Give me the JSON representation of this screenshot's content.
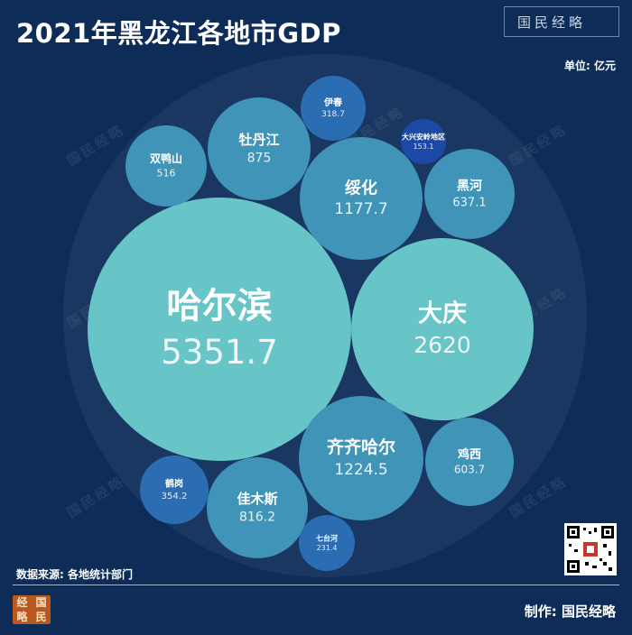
{
  "header": {
    "title": "2021年黑龙江各地市GDP",
    "brand": "国民经略",
    "unit": "单位: 亿元"
  },
  "footer": {
    "source": "数据来源: 各地统计部门",
    "maker": "制作: 国民经略",
    "logo_chars": [
      "经",
      "国",
      "略",
      "民"
    ]
  },
  "colors": {
    "background": "#0d2d58",
    "large_bubble": "#67c4c7",
    "mid_bubble": "#3f94b8",
    "small_bubble": "#2a6db3",
    "tiny_bubble": "#1d49a6"
  },
  "chart_data": {
    "type": "bubble",
    "title": "2021年黑龙江各地市GDP",
    "unit": "亿元",
    "items": [
      {
        "name": "哈尔滨",
        "value": 5351.7,
        "label": "5351.7"
      },
      {
        "name": "大庆",
        "value": 2620,
        "label": "2620"
      },
      {
        "name": "齐齐哈尔",
        "value": 1224.5,
        "label": "1224.5"
      },
      {
        "name": "绥化",
        "value": 1177.7,
        "label": "1177.7"
      },
      {
        "name": "牡丹江",
        "value": 875,
        "label": "875"
      },
      {
        "name": "佳木斯",
        "value": 816.2,
        "label": "816.2"
      },
      {
        "name": "黑河",
        "value": 637.1,
        "label": "637.1"
      },
      {
        "name": "鸡西",
        "value": 603.7,
        "label": "603.7"
      },
      {
        "name": "双鸭山",
        "value": 516,
        "label": "516"
      },
      {
        "name": "鹤岗",
        "value": 354.2,
        "label": "354.2"
      },
      {
        "name": "伊春",
        "value": 318.7,
        "label": "318.7"
      },
      {
        "name": "七台河",
        "value": 231.4,
        "label": "231.4"
      },
      {
        "name": "大兴安岭地区",
        "value": 153.1,
        "label": "153.1"
      }
    ]
  }
}
